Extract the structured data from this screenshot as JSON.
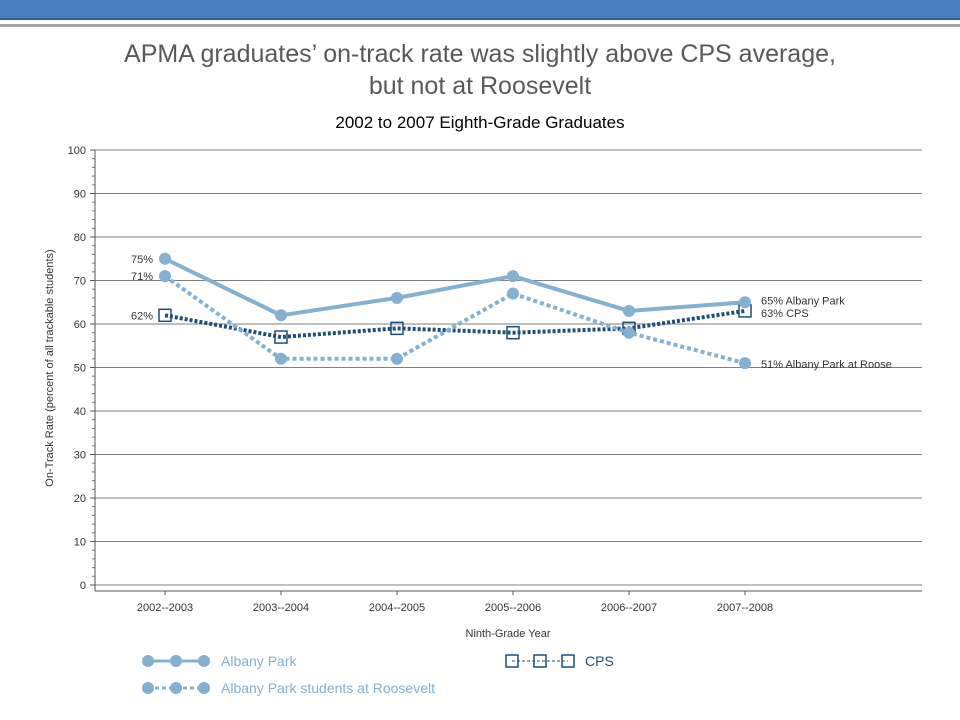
{
  "slide": {
    "title_line1": "APMA graduates’ on-track rate was slightly above CPS average,",
    "title_line2": "but not at Roosevelt"
  },
  "colors": {
    "albany_park": "#84b0d2",
    "roosevelt": "#84b0d2",
    "cps": "#1f4e79",
    "grid": "#7f7f7f",
    "header_bar": "#4a7ebf"
  },
  "chart_data": {
    "type": "line",
    "title": "2002 to 2007 Eighth-Grade Graduates",
    "xlabel": "Ninth-Grade Year",
    "ylabel": "On-Track Rate (percent of all trackable students)",
    "categories": [
      "2002--2003",
      "2003--2004",
      "2004--2005",
      "2005--2006",
      "2006--2007",
      "2007--2008"
    ],
    "ylim": [
      0,
      100
    ],
    "yticks": [
      0,
      10,
      20,
      30,
      40,
      50,
      60,
      70,
      80,
      90,
      100
    ],
    "grid": true,
    "series": [
      {
        "name": "Albany Park",
        "values": [
          75,
          62,
          66,
          71,
          63,
          65
        ],
        "style": "solid",
        "marker": "circle",
        "start_label": "75%",
        "end_label": "65% Albany Park"
      },
      {
        "name": "Albany Park students at Roosevelt",
        "values": [
          71,
          52,
          52,
          67,
          58,
          51
        ],
        "style": "dotted",
        "marker": "circle",
        "start_label": "71%",
        "end_label": "51% Albany Park at Roose"
      },
      {
        "name": "CPS",
        "values": [
          62,
          57,
          59,
          58,
          59,
          63
        ],
        "style": "dotted",
        "marker": "square",
        "start_label": "62%",
        "end_label": "63% CPS"
      }
    ],
    "legend": {
      "position": "bottom"
    }
  }
}
